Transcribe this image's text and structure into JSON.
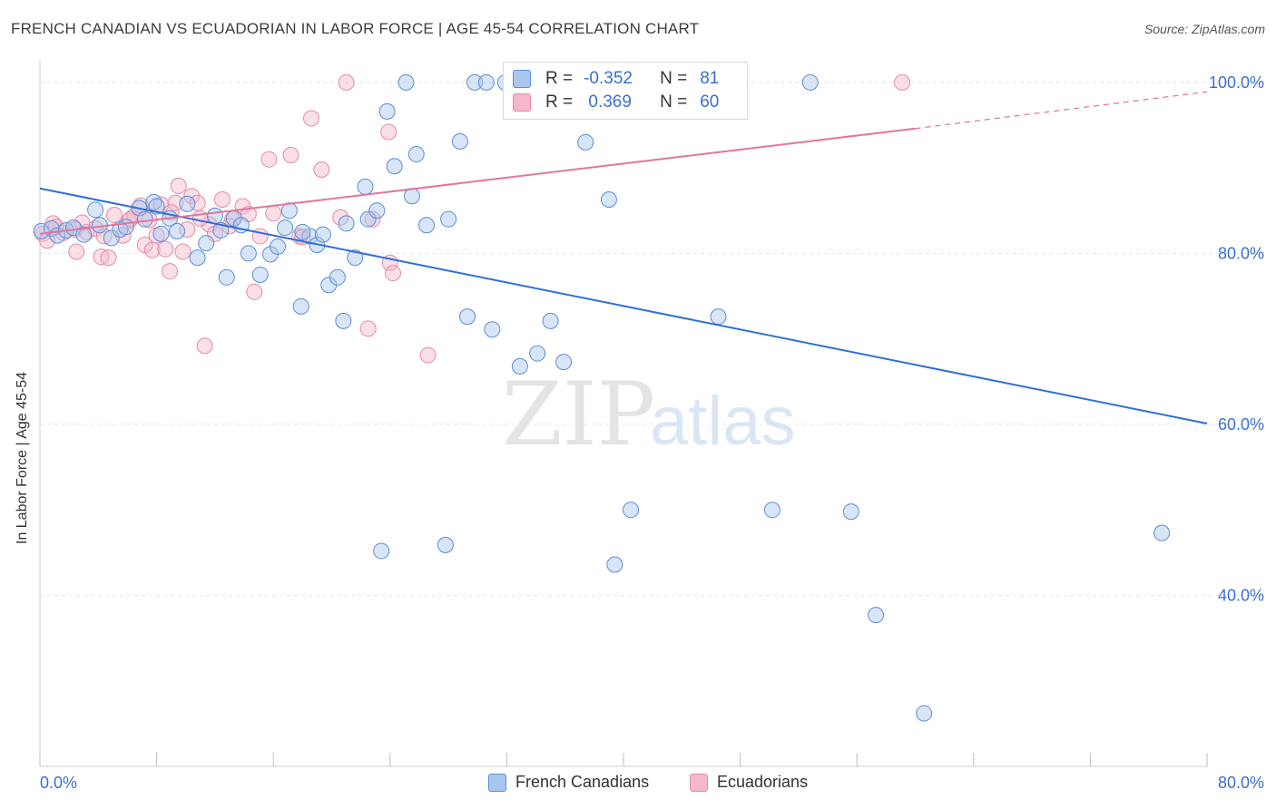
{
  "title": "FRENCH CANADIAN VS ECUADORIAN IN LABOR FORCE | AGE 45-54 CORRELATION CHART",
  "source": "Source: ZipAtlas.com",
  "watermark": {
    "zip": "ZIP",
    "atlas": "atlas"
  },
  "colors": {
    "blue_fill": "#a9c6ee",
    "blue_stroke": "#5b8ed6",
    "blue_line": "#2f6fd6",
    "pink_fill": "#f5b7c9",
    "pink_stroke": "#e58aa6",
    "pink_line": "#e2759b",
    "tick_text": "#3a6fd0",
    "grid": "#e6e6e6"
  },
  "stats": {
    "rows": [
      {
        "r_label": "R =",
        "r_value": "-0.352",
        "n_label": "N =",
        "n_value": "81",
        "series": "French Canadians"
      },
      {
        "r_label": "R =",
        "r_value": " 0.369",
        "n_label": "N =",
        "n_value": "60",
        "series": "Ecuadorians"
      }
    ]
  },
  "legend": [
    "French Canadians",
    "Ecuadorians"
  ],
  "chart_data": {
    "type": "scatter",
    "title": "FRENCH CANADIAN VS ECUADORIAN IN LABOR FORCE | AGE 45-54 CORRELATION CHART",
    "xlabel": "",
    "ylabel": "In Labor Force | Age 45-54",
    "xlim": [
      0,
      80
    ],
    "ylim": [
      20,
      102
    ],
    "x_tick_labels": [
      "0.0%",
      "80.0%"
    ],
    "y_ticks": [
      40,
      60,
      80,
      100
    ],
    "y_tick_labels": [
      "40.0%",
      "60.0%",
      "80.0%",
      "100.0%"
    ],
    "grid": true,
    "legend_position": "bottom",
    "series": [
      {
        "name": "French Canadians",
        "trend": {
          "x": [
            0,
            80
          ],
          "y": [
            87.6,
            60.1
          ]
        },
        "points": [
          [
            0.1,
            82.6
          ],
          [
            0.8,
            82.9
          ],
          [
            1.2,
            82.1
          ],
          [
            1.8,
            82.7
          ],
          [
            2.3,
            83.0
          ],
          [
            3.0,
            82.2
          ],
          [
            3.8,
            85.1
          ],
          [
            4.9,
            81.8
          ],
          [
            5.5,
            82.8
          ],
          [
            5.9,
            83.1
          ],
          [
            6.8,
            85.3
          ],
          [
            7.2,
            84.0
          ],
          [
            7.8,
            86.0
          ],
          [
            8.3,
            82.3
          ],
          [
            8.9,
            84.1
          ],
          [
            9.4,
            82.6
          ],
          [
            10.1,
            85.8
          ],
          [
            10.8,
            79.5
          ],
          [
            11.4,
            81.2
          ],
          [
            12.0,
            84.4
          ],
          [
            12.4,
            82.7
          ],
          [
            12.8,
            77.2
          ],
          [
            13.3,
            84.1
          ],
          [
            13.8,
            83.3
          ],
          [
            14.3,
            80.0
          ],
          [
            15.1,
            77.5
          ],
          [
            15.8,
            79.9
          ],
          [
            16.3,
            80.8
          ],
          [
            17.1,
            85.0
          ],
          [
            17.9,
            73.8
          ],
          [
            18.5,
            82.0
          ],
          [
            19.0,
            81.0
          ],
          [
            19.4,
            82.2
          ],
          [
            19.8,
            76.3
          ],
          [
            20.4,
            77.2
          ],
          [
            20.8,
            72.1
          ],
          [
            21.6,
            79.5
          ],
          [
            22.3,
            87.8
          ],
          [
            22.5,
            84.0
          ],
          [
            23.1,
            85.0
          ],
          [
            23.4,
            45.2
          ],
          [
            23.8,
            96.6
          ],
          [
            24.3,
            90.2
          ],
          [
            25.1,
            100.0
          ],
          [
            25.5,
            86.7
          ],
          [
            25.8,
            91.6
          ],
          [
            26.5,
            83.3
          ],
          [
            27.8,
            45.9
          ],
          [
            28.8,
            93.1
          ],
          [
            29.3,
            72.6
          ],
          [
            29.8,
            100.0
          ],
          [
            30.6,
            100.0
          ],
          [
            31.0,
            71.1
          ],
          [
            31.9,
            100.0
          ],
          [
            32.6,
            100.0
          ],
          [
            32.9,
            66.8
          ],
          [
            33.6,
            100.0
          ],
          [
            34.1,
            68.3
          ],
          [
            35.0,
            72.1
          ],
          [
            35.9,
            67.3
          ],
          [
            36.4,
            100.0
          ],
          [
            37.4,
            93.0
          ],
          [
            38.4,
            100.0
          ],
          [
            39.0,
            86.3
          ],
          [
            39.4,
            43.6
          ],
          [
            40.5,
            50.0
          ],
          [
            45.0,
            100.0
          ],
          [
            46.5,
            72.6
          ],
          [
            47.1,
            100.0
          ],
          [
            50.2,
            50.0
          ],
          [
            52.8,
            100.0
          ],
          [
            55.6,
            49.8
          ],
          [
            57.3,
            37.7
          ],
          [
            60.6,
            26.2
          ],
          [
            76.9,
            47.3
          ],
          [
            4.1,
            83.3
          ],
          [
            8.0,
            85.5
          ],
          [
            16.8,
            83.0
          ],
          [
            18.0,
            82.5
          ],
          [
            21.0,
            83.5
          ],
          [
            28.0,
            84.0
          ]
        ]
      },
      {
        "name": "Ecuadorians",
        "trend": {
          "x": [
            0,
            60
          ],
          "y": [
            82.3,
            94.6
          ],
          "x_ext": [
            60,
            80
          ],
          "y_ext": [
            94.6,
            98.9
          ]
        },
        "points": [
          [
            0.2,
            82.3
          ],
          [
            0.9,
            83.5
          ],
          [
            1.6,
            82.4
          ],
          [
            2.4,
            82.8
          ],
          [
            2.5,
            80.2
          ],
          [
            3.2,
            82.5
          ],
          [
            3.8,
            82.9
          ],
          [
            4.2,
            79.6
          ],
          [
            4.7,
            79.5
          ],
          [
            5.1,
            84.5
          ],
          [
            5.7,
            82.1
          ],
          [
            6.1,
            83.8
          ],
          [
            6.5,
            84.4
          ],
          [
            6.9,
            85.6
          ],
          [
            7.2,
            81.0
          ],
          [
            7.5,
            83.9
          ],
          [
            7.7,
            80.4
          ],
          [
            8.0,
            82.1
          ],
          [
            8.3,
            85.7
          ],
          [
            8.6,
            80.5
          ],
          [
            8.9,
            77.9
          ],
          [
            9.3,
            85.9
          ],
          [
            9.5,
            87.9
          ],
          [
            9.8,
            80.2
          ],
          [
            10.1,
            82.8
          ],
          [
            10.4,
            86.7
          ],
          [
            10.8,
            85.9
          ],
          [
            11.3,
            69.2
          ],
          [
            11.6,
            83.4
          ],
          [
            12.0,
            82.3
          ],
          [
            12.5,
            86.3
          ],
          [
            13.2,
            84.0
          ],
          [
            13.9,
            85.5
          ],
          [
            14.3,
            84.6
          ],
          [
            14.7,
            75.5
          ],
          [
            15.1,
            82.0
          ],
          [
            15.7,
            91.0
          ],
          [
            17.2,
            91.5
          ],
          [
            17.8,
            82.0
          ],
          [
            18.6,
            95.8
          ],
          [
            19.3,
            89.8
          ],
          [
            20.6,
            84.2
          ],
          [
            21.0,
            100.0
          ],
          [
            22.5,
            71.2
          ],
          [
            22.8,
            84.0
          ],
          [
            23.9,
            94.2
          ],
          [
            24.0,
            78.9
          ],
          [
            24.2,
            77.7
          ],
          [
            26.6,
            68.1
          ],
          [
            59.1,
            100.0
          ],
          [
            0.5,
            81.5
          ],
          [
            1.1,
            83.1
          ],
          [
            2.9,
            83.6
          ],
          [
            4.4,
            82.0
          ],
          [
            6.2,
            84.0
          ],
          [
            9.0,
            84.8
          ],
          [
            11.0,
            84.1
          ],
          [
            13.0,
            83.2
          ],
          [
            16.0,
            84.7
          ],
          [
            18.0,
            81.9
          ]
        ]
      }
    ]
  }
}
